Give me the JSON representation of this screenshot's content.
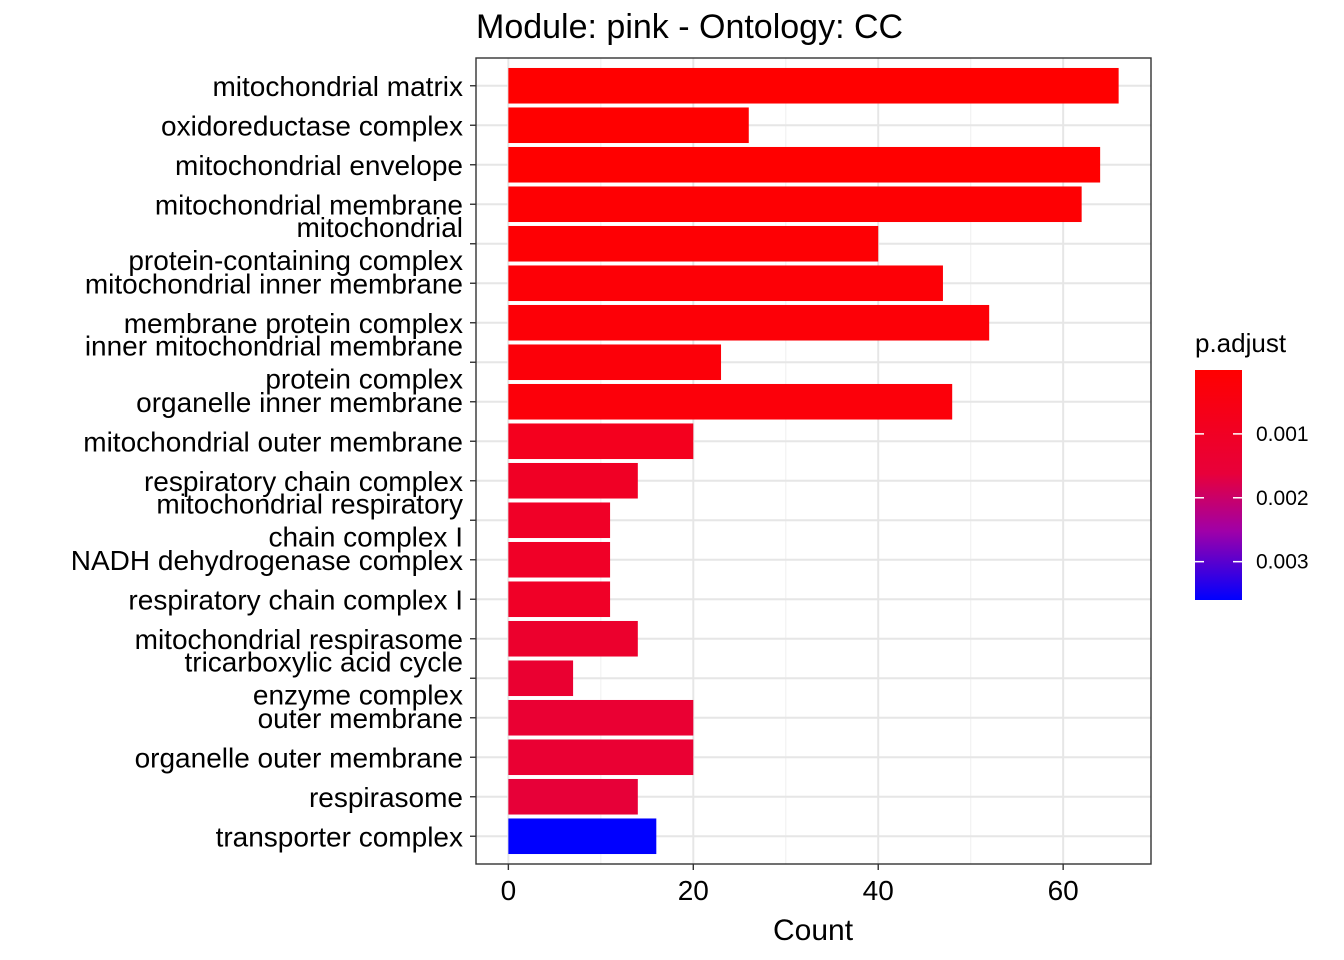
{
  "chart_data": {
    "type": "bar",
    "orientation": "horizontal",
    "title": "Module: pink - Ontology: CC",
    "xlabel": "Count",
    "ylabel": "",
    "xlim": [
      -3.5,
      69.5
    ],
    "xticks": [
      0,
      20,
      40,
      60
    ],
    "grid": true,
    "categories": [
      [
        "mitochondrial matrix"
      ],
      [
        "oxidoreductase complex"
      ],
      [
        "mitochondrial envelope"
      ],
      [
        "mitochondrial membrane"
      ],
      [
        "mitochondrial",
        "protein-containing complex"
      ],
      [
        "mitochondrial inner membrane"
      ],
      [
        "membrane protein complex"
      ],
      [
        "inner mitochondrial membrane",
        "protein complex"
      ],
      [
        "organelle inner membrane"
      ],
      [
        "mitochondrial outer membrane"
      ],
      [
        "respiratory chain complex"
      ],
      [
        "mitochondrial respiratory",
        "chain complex I"
      ],
      [
        "NADH dehydrogenase complex"
      ],
      [
        "respiratory chain complex I"
      ],
      [
        "mitochondrial respirasome"
      ],
      [
        "tricarboxylic acid cycle",
        "enzyme complex"
      ],
      [
        "outer membrane"
      ],
      [
        "organelle outer membrane"
      ],
      [
        "respirasome"
      ],
      [
        "transporter complex"
      ]
    ],
    "values": [
      66,
      26,
      64,
      62,
      40,
      47,
      52,
      23,
      48,
      20,
      14,
      11,
      11,
      11,
      14,
      7,
      20,
      20,
      14,
      16
    ],
    "p_adjust": [
      0.0,
      0.0,
      0.0,
      1e-05,
      1e-05,
      2e-05,
      3e-05,
      5e-05,
      6e-05,
      0.0002,
      0.0003,
      0.0003,
      0.0003,
      0.0003,
      0.00035,
      0.0004,
      0.0004,
      0.0004,
      0.00045,
      0.0036
    ],
    "colors": [
      "#FF0000",
      "#FF0000",
      "#FF0000",
      "#FE0003",
      "#FE0004",
      "#FD0006",
      "#FD0007",
      "#FC0009",
      "#FC000A",
      "#F4001E",
      "#F00025",
      "#F00027",
      "#F00027",
      "#F00027",
      "#EC002D",
      "#EA0031",
      "#EA0033",
      "#EA0033",
      "#E70038",
      "#0000FF"
    ],
    "legend": {
      "title": "p.adjust",
      "placement": "right",
      "color_low": "#FF0000",
      "color_high": "#0000FF",
      "labels": [
        "0.001",
        "0.002",
        "0.003"
      ],
      "range": [
        0.0,
        0.0036
      ],
      "ticks": [
        0.001,
        0.002,
        0.003
      ]
    }
  }
}
